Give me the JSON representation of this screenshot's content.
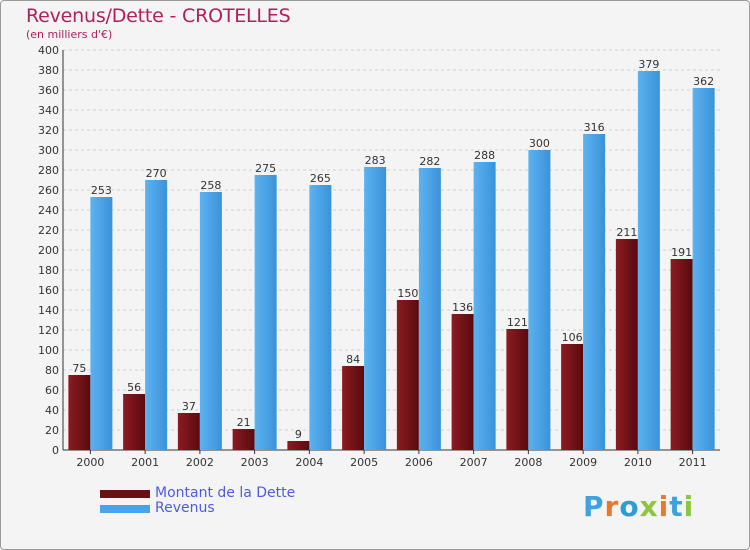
{
  "header": {
    "title": "Revenus/Dette - CROTELLES",
    "subtitle": "(en milliers d'€)"
  },
  "legend": {
    "items": [
      {
        "label": "Montant de la Dette",
        "color": "#6b0f14"
      },
      {
        "label": "Revenus",
        "color": "#4aa3e8"
      }
    ]
  },
  "logo": {
    "text": "Proxiti",
    "letters": [
      "P",
      "r",
      "o",
      "x",
      "i",
      "t",
      "i"
    ],
    "colors": [
      "#3fa2dc",
      "#e8782a",
      "#2e9bd6",
      "#8cc63f",
      "#e8782a",
      "#3fa2dc",
      "#8cc63f"
    ]
  },
  "chart_data": {
    "type": "bar",
    "categories": [
      "2000",
      "2001",
      "2002",
      "2003",
      "2004",
      "2005",
      "2006",
      "2007",
      "2008",
      "2009",
      "2010",
      "2011"
    ],
    "series": [
      {
        "name": "Montant de la Dette",
        "values": [
          75,
          56,
          37,
          21,
          9,
          84,
          150,
          136,
          121,
          106,
          211,
          191
        ],
        "color": "#6b0f14"
      },
      {
        "name": "Revenus",
        "values": [
          253,
          270,
          258,
          275,
          265,
          283,
          282,
          288,
          300,
          316,
          379,
          362
        ],
        "color": "#4aa3e8"
      }
    ],
    "title": "Revenus/Dette - CROTELLES",
    "ylabel": "",
    "xlabel": "",
    "ylim": [
      0,
      400
    ],
    "yticks": [
      0,
      20,
      40,
      60,
      80,
      100,
      120,
      140,
      160,
      180,
      200,
      220,
      240,
      260,
      280,
      300,
      320,
      340,
      360,
      380,
      400
    ],
    "grid": true
  }
}
